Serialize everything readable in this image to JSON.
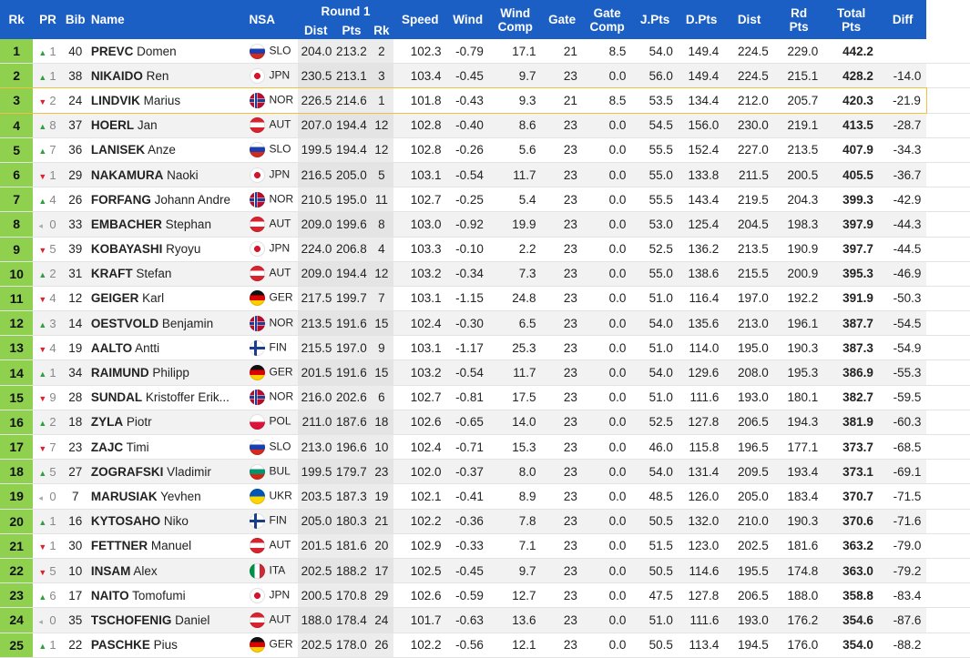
{
  "headers": {
    "rk": "Rk",
    "pr": "PR",
    "bib": "Bib",
    "name": "Name",
    "nsa": "NSA",
    "round": "Round 1",
    "dist": "Dist",
    "pts": "Pts",
    "r1rk": "Rk",
    "speed": "Speed",
    "wind": "Wind",
    "wind_comp_1": "Wind",
    "wind_comp_2": "Comp",
    "gate": "Gate",
    "gate_comp_1": "Gate",
    "gate_comp_2": "Comp",
    "jpts": "J.Pts",
    "dpts": "D.Pts",
    "dist2": "Dist",
    "rd_pts_1": "Rd",
    "rd_pts_2": "Pts",
    "total_1": "Total",
    "total_2": "Pts",
    "diff": "Diff"
  },
  "colors": {
    "header_bg": "#1b5fc4",
    "rank_bg": "#8fd14f",
    "up": "#2e9e3e",
    "down": "#d9232f",
    "highlight": "#f0c040"
  },
  "rows": [
    {
      "rk": "1",
      "trend": "up",
      "pr": "1",
      "bib": "40",
      "last": "PREVC",
      "first": "Domen",
      "flag": "slo",
      "nsa": "SLO",
      "dist": "204.0",
      "pts": "213.2",
      "r1rk": "2",
      "speed": "102.3",
      "wind": "-0.79",
      "wcomp": "17.1",
      "gate": "21",
      "gcomp": "8.5",
      "jpts": "54.0",
      "dpts": "149.4",
      "dist2": "224.5",
      "rdpts": "229.0",
      "total": "442.2",
      "diff": ""
    },
    {
      "rk": "2",
      "trend": "up",
      "pr": "1",
      "bib": "38",
      "last": "NIKAIDO",
      "first": "Ren",
      "flag": "jpn",
      "nsa": "JPN",
      "dist": "230.5",
      "pts": "213.1",
      "r1rk": "3",
      "speed": "103.4",
      "wind": "-0.45",
      "wcomp": "9.7",
      "gate": "23",
      "gcomp": "0.0",
      "jpts": "56.0",
      "dpts": "149.4",
      "dist2": "224.5",
      "rdpts": "215.1",
      "total": "428.2",
      "diff": "-14.0"
    },
    {
      "rk": "3",
      "trend": "down",
      "pr": "2",
      "bib": "24",
      "last": "LINDVIK",
      "first": "Marius",
      "flag": "nor",
      "nsa": "NOR",
      "dist": "226.5",
      "pts": "214.6",
      "r1rk": "1",
      "speed": "101.8",
      "wind": "-0.43",
      "wcomp": "9.3",
      "gate": "21",
      "gcomp": "8.5",
      "jpts": "53.5",
      "dpts": "134.4",
      "dist2": "212.0",
      "rdpts": "205.7",
      "total": "420.3",
      "diff": "-21.9",
      "highlight": true
    },
    {
      "rk": "4",
      "trend": "up",
      "pr": "8",
      "bib": "37",
      "last": "HOERL",
      "first": "Jan",
      "flag": "aut",
      "nsa": "AUT",
      "dist": "207.0",
      "pts": "194.4",
      "r1rk": "12",
      "speed": "102.8",
      "wind": "-0.40",
      "wcomp": "8.6",
      "gate": "23",
      "gcomp": "0.0",
      "jpts": "54.5",
      "dpts": "156.0",
      "dist2": "230.0",
      "rdpts": "219.1",
      "total": "413.5",
      "diff": "-28.7"
    },
    {
      "rk": "5",
      "trend": "up",
      "pr": "7",
      "bib": "36",
      "last": "LANISEK",
      "first": "Anze",
      "flag": "slo",
      "nsa": "SLO",
      "dist": "199.5",
      "pts": "194.4",
      "r1rk": "12",
      "speed": "102.8",
      "wind": "-0.26",
      "wcomp": "5.6",
      "gate": "23",
      "gcomp": "0.0",
      "jpts": "55.5",
      "dpts": "152.4",
      "dist2": "227.0",
      "rdpts": "213.5",
      "total": "407.9",
      "diff": "-34.3"
    },
    {
      "rk": "6",
      "trend": "down",
      "pr": "1",
      "bib": "29",
      "last": "NAKAMURA",
      "first": "Naoki",
      "flag": "jpn",
      "nsa": "JPN",
      "dist": "216.5",
      "pts": "205.0",
      "r1rk": "5",
      "speed": "103.1",
      "wind": "-0.54",
      "wcomp": "11.7",
      "gate": "23",
      "gcomp": "0.0",
      "jpts": "55.0",
      "dpts": "133.8",
      "dist2": "211.5",
      "rdpts": "200.5",
      "total": "405.5",
      "diff": "-36.7"
    },
    {
      "rk": "7",
      "trend": "up",
      "pr": "4",
      "bib": "26",
      "last": "FORFANG",
      "first": "Johann Andre",
      "flag": "nor",
      "nsa": "NOR",
      "dist": "210.5",
      "pts": "195.0",
      "r1rk": "11",
      "speed": "102.7",
      "wind": "-0.25",
      "wcomp": "5.4",
      "gate": "23",
      "gcomp": "0.0",
      "jpts": "55.5",
      "dpts": "143.4",
      "dist2": "219.5",
      "rdpts": "204.3",
      "total": "399.3",
      "diff": "-42.9"
    },
    {
      "rk": "8",
      "trend": "same",
      "pr": "0",
      "bib": "33",
      "last": "EMBACHER",
      "first": "Stephan",
      "flag": "aut",
      "nsa": "AUT",
      "dist": "209.0",
      "pts": "199.6",
      "r1rk": "8",
      "speed": "103.0",
      "wind": "-0.92",
      "wcomp": "19.9",
      "gate": "23",
      "gcomp": "0.0",
      "jpts": "53.0",
      "dpts": "125.4",
      "dist2": "204.5",
      "rdpts": "198.3",
      "total": "397.9",
      "diff": "-44.3"
    },
    {
      "rk": "9",
      "trend": "down",
      "pr": "5",
      "bib": "39",
      "last": "KOBAYASHI",
      "first": "Ryoyu",
      "flag": "jpn",
      "nsa": "JPN",
      "dist": "224.0",
      "pts": "206.8",
      "r1rk": "4",
      "speed": "103.3",
      "wind": "-0.10",
      "wcomp": "2.2",
      "gate": "23",
      "gcomp": "0.0",
      "jpts": "52.5",
      "dpts": "136.2",
      "dist2": "213.5",
      "rdpts": "190.9",
      "total": "397.7",
      "diff": "-44.5"
    },
    {
      "rk": "10",
      "trend": "up",
      "pr": "2",
      "bib": "31",
      "last": "KRAFT",
      "first": "Stefan",
      "flag": "aut",
      "nsa": "AUT",
      "dist": "209.0",
      "pts": "194.4",
      "r1rk": "12",
      "speed": "103.2",
      "wind": "-0.34",
      "wcomp": "7.3",
      "gate": "23",
      "gcomp": "0.0",
      "jpts": "55.0",
      "dpts": "138.6",
      "dist2": "215.5",
      "rdpts": "200.9",
      "total": "395.3",
      "diff": "-46.9"
    },
    {
      "rk": "11",
      "trend": "down",
      "pr": "4",
      "bib": "12",
      "last": "GEIGER",
      "first": "Karl",
      "flag": "ger",
      "nsa": "GER",
      "dist": "217.5",
      "pts": "199.7",
      "r1rk": "7",
      "speed": "103.1",
      "wind": "-1.15",
      "wcomp": "24.8",
      "gate": "23",
      "gcomp": "0.0",
      "jpts": "51.0",
      "dpts": "116.4",
      "dist2": "197.0",
      "rdpts": "192.2",
      "total": "391.9",
      "diff": "-50.3"
    },
    {
      "rk": "12",
      "trend": "up",
      "pr": "3",
      "bib": "14",
      "last": "OESTVOLD",
      "first": "Benjamin",
      "flag": "nor",
      "nsa": "NOR",
      "dist": "213.5",
      "pts": "191.6",
      "r1rk": "15",
      "speed": "102.4",
      "wind": "-0.30",
      "wcomp": "6.5",
      "gate": "23",
      "gcomp": "0.0",
      "jpts": "54.0",
      "dpts": "135.6",
      "dist2": "213.0",
      "rdpts": "196.1",
      "total": "387.7",
      "diff": "-54.5"
    },
    {
      "rk": "13",
      "trend": "down",
      "pr": "4",
      "bib": "19",
      "last": "AALTO",
      "first": "Antti",
      "flag": "fin",
      "nsa": "FIN",
      "dist": "215.5",
      "pts": "197.0",
      "r1rk": "9",
      "speed": "103.1",
      "wind": "-1.17",
      "wcomp": "25.3",
      "gate": "23",
      "gcomp": "0.0",
      "jpts": "51.0",
      "dpts": "114.0",
      "dist2": "195.0",
      "rdpts": "190.3",
      "total": "387.3",
      "diff": "-54.9"
    },
    {
      "rk": "14",
      "trend": "up",
      "pr": "1",
      "bib": "34",
      "last": "RAIMUND",
      "first": "Philipp",
      "flag": "ger",
      "nsa": "GER",
      "dist": "201.5",
      "pts": "191.6",
      "r1rk": "15",
      "speed": "103.2",
      "wind": "-0.54",
      "wcomp": "11.7",
      "gate": "23",
      "gcomp": "0.0",
      "jpts": "54.0",
      "dpts": "129.6",
      "dist2": "208.0",
      "rdpts": "195.3",
      "total": "386.9",
      "diff": "-55.3"
    },
    {
      "rk": "15",
      "trend": "down",
      "pr": "9",
      "bib": "28",
      "last": "SUNDAL",
      "first": "Kristoffer Erik...",
      "flag": "nor",
      "nsa": "NOR",
      "dist": "216.0",
      "pts": "202.6",
      "r1rk": "6",
      "speed": "102.7",
      "wind": "-0.81",
      "wcomp": "17.5",
      "gate": "23",
      "gcomp": "0.0",
      "jpts": "51.0",
      "dpts": "111.6",
      "dist2": "193.0",
      "rdpts": "180.1",
      "total": "382.7",
      "diff": "-59.5"
    },
    {
      "rk": "16",
      "trend": "up",
      "pr": "2",
      "bib": "18",
      "last": "ZYLA",
      "first": "Piotr",
      "flag": "pol",
      "nsa": "POL",
      "dist": "211.0",
      "pts": "187.6",
      "r1rk": "18",
      "speed": "102.6",
      "wind": "-0.65",
      "wcomp": "14.0",
      "gate": "23",
      "gcomp": "0.0",
      "jpts": "52.5",
      "dpts": "127.8",
      "dist2": "206.5",
      "rdpts": "194.3",
      "total": "381.9",
      "diff": "-60.3"
    },
    {
      "rk": "17",
      "trend": "down",
      "pr": "7",
      "bib": "23",
      "last": "ZAJC",
      "first": "Timi",
      "flag": "slo",
      "nsa": "SLO",
      "dist": "213.0",
      "pts": "196.6",
      "r1rk": "10",
      "speed": "102.4",
      "wind": "-0.71",
      "wcomp": "15.3",
      "gate": "23",
      "gcomp": "0.0",
      "jpts": "46.0",
      "dpts": "115.8",
      "dist2": "196.5",
      "rdpts": "177.1",
      "total": "373.7",
      "diff": "-68.5"
    },
    {
      "rk": "18",
      "trend": "up",
      "pr": "5",
      "bib": "27",
      "last": "ZOGRAFSKI",
      "first": "Vladimir",
      "flag": "bul",
      "nsa": "BUL",
      "dist": "199.5",
      "pts": "179.7",
      "r1rk": "23",
      "speed": "102.0",
      "wind": "-0.37",
      "wcomp": "8.0",
      "gate": "23",
      "gcomp": "0.0",
      "jpts": "54.0",
      "dpts": "131.4",
      "dist2": "209.5",
      "rdpts": "193.4",
      "total": "373.1",
      "diff": "-69.1"
    },
    {
      "rk": "19",
      "trend": "same",
      "pr": "0",
      "bib": "7",
      "last": "MARUSIAK",
      "first": "Yevhen",
      "flag": "ukr",
      "nsa": "UKR",
      "dist": "203.5",
      "pts": "187.3",
      "r1rk": "19",
      "speed": "102.1",
      "wind": "-0.41",
      "wcomp": "8.9",
      "gate": "23",
      "gcomp": "0.0",
      "jpts": "48.5",
      "dpts": "126.0",
      "dist2": "205.0",
      "rdpts": "183.4",
      "total": "370.7",
      "diff": "-71.5"
    },
    {
      "rk": "20",
      "trend": "up",
      "pr": "1",
      "bib": "16",
      "last": "KYTOSAHO",
      "first": "Niko",
      "flag": "fin",
      "nsa": "FIN",
      "dist": "205.0",
      "pts": "180.3",
      "r1rk": "21",
      "speed": "102.2",
      "wind": "-0.36",
      "wcomp": "7.8",
      "gate": "23",
      "gcomp": "0.0",
      "jpts": "50.5",
      "dpts": "132.0",
      "dist2": "210.0",
      "rdpts": "190.3",
      "total": "370.6",
      "diff": "-71.6"
    },
    {
      "rk": "21",
      "trend": "down",
      "pr": "1",
      "bib": "30",
      "last": "FETTNER",
      "first": "Manuel",
      "flag": "aut",
      "nsa": "AUT",
      "dist": "201.5",
      "pts": "181.6",
      "r1rk": "20",
      "speed": "102.9",
      "wind": "-0.33",
      "wcomp": "7.1",
      "gate": "23",
      "gcomp": "0.0",
      "jpts": "51.5",
      "dpts": "123.0",
      "dist2": "202.5",
      "rdpts": "181.6",
      "total": "363.2",
      "diff": "-79.0"
    },
    {
      "rk": "22",
      "trend": "down",
      "pr": "5",
      "bib": "10",
      "last": "INSAM",
      "first": "Alex",
      "flag": "ita",
      "nsa": "ITA",
      "dist": "202.5",
      "pts": "188.2",
      "r1rk": "17",
      "speed": "102.5",
      "wind": "-0.45",
      "wcomp": "9.7",
      "gate": "23",
      "gcomp": "0.0",
      "jpts": "50.5",
      "dpts": "114.6",
      "dist2": "195.5",
      "rdpts": "174.8",
      "total": "363.0",
      "diff": "-79.2"
    },
    {
      "rk": "23",
      "trend": "up",
      "pr": "6",
      "bib": "17",
      "last": "NAITO",
      "first": "Tomofumi",
      "flag": "jpn",
      "nsa": "JPN",
      "dist": "200.5",
      "pts": "170.8",
      "r1rk": "29",
      "speed": "102.6",
      "wind": "-0.59",
      "wcomp": "12.7",
      "gate": "23",
      "gcomp": "0.0",
      "jpts": "47.5",
      "dpts": "127.8",
      "dist2": "206.5",
      "rdpts": "188.0",
      "total": "358.8",
      "diff": "-83.4"
    },
    {
      "rk": "24",
      "trend": "same",
      "pr": "0",
      "bib": "35",
      "last": "TSCHOFENIG",
      "first": "Daniel",
      "flag": "aut",
      "nsa": "AUT",
      "dist": "188.0",
      "pts": "178.4",
      "r1rk": "24",
      "speed": "101.7",
      "wind": "-0.63",
      "wcomp": "13.6",
      "gate": "23",
      "gcomp": "0.0",
      "jpts": "51.0",
      "dpts": "111.6",
      "dist2": "193.0",
      "rdpts": "176.2",
      "total": "354.6",
      "diff": "-87.6"
    },
    {
      "rk": "25",
      "trend": "up",
      "pr": "1",
      "bib": "22",
      "last": "PASCHKE",
      "first": "Pius",
      "flag": "ger",
      "nsa": "GER",
      "dist": "202.5",
      "pts": "178.0",
      "r1rk": "26",
      "speed": "102.2",
      "wind": "-0.56",
      "wcomp": "12.1",
      "gate": "23",
      "gcomp": "0.0",
      "jpts": "50.5",
      "dpts": "113.4",
      "dist2": "194.5",
      "rdpts": "176.0",
      "total": "354.0",
      "diff": "-88.2"
    }
  ]
}
